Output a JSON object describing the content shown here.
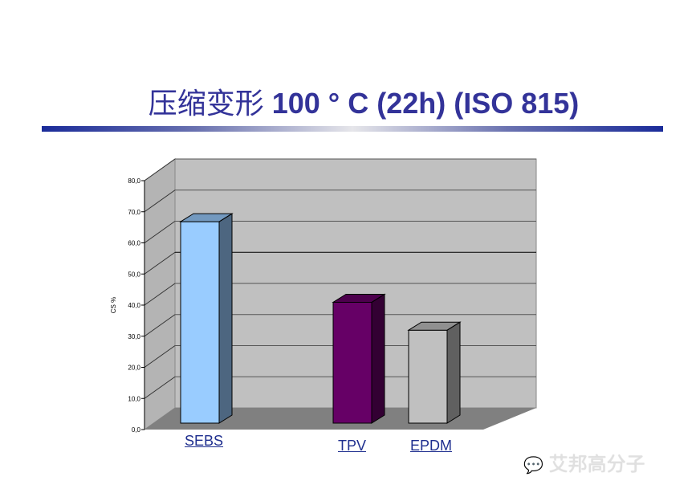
{
  "title": {
    "cn": "压缩变形",
    "rest": " 100 ° C (22h) (ISO 815)"
  },
  "chart_data": {
    "type": "bar",
    "categories": [
      "SEBS",
      "TPV",
      "EPDM"
    ],
    "values": [
      65,
      39,
      30
    ],
    "ylabel": "CS %",
    "ylim": [
      0,
      80
    ],
    "yticks": [
      "0,0",
      "10,0",
      "20,0",
      "30,0",
      "40,0",
      "50,0",
      "60,0",
      "70,0",
      "80,0"
    ],
    "grid": true,
    "colors": [
      "#99ccff",
      "#660066",
      "#c0c0c0"
    ],
    "side_colors": [
      "#4d6680",
      "#330033",
      "#606060"
    ],
    "top_colors": [
      "#7399bf",
      "#4d004d",
      "#909090"
    ]
  },
  "watermark": "艾邦高分子"
}
